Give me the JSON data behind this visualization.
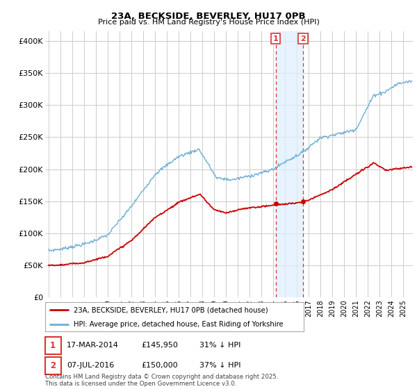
{
  "title": "23A, BECKSIDE, BEVERLEY, HU17 0PB",
  "subtitle": "Price paid vs. HM Land Registry's House Price Index (HPI)",
  "footer": "Contains HM Land Registry data © Crown copyright and database right 2025.\nThis data is licensed under the Open Government Licence v3.0.",
  "legend_line1": "23A, BECKSIDE, BEVERLEY, HU17 0PB (detached house)",
  "legend_line2": "HPI: Average price, detached house, East Riding of Yorkshire",
  "sale1_label": "1",
  "sale1_date": "17-MAR-2014",
  "sale1_price": "£145,950",
  "sale1_hpi": "31% ↓ HPI",
  "sale2_label": "2",
  "sale2_date": "07-JUL-2016",
  "sale2_price": "£150,000",
  "sale2_hpi": "37% ↓ HPI",
  "hpi_color": "#6aaed6",
  "price_color": "#cc0000",
  "sale_marker_color": "#cc0000",
  "vline_color": "#dd3333",
  "shade_color": "#ddeeff",
  "ylabel_ticks": [
    "£0",
    "£50K",
    "£100K",
    "£150K",
    "£200K",
    "£250K",
    "£300K",
    "£350K",
    "£400K"
  ],
  "ytick_values": [
    0,
    50000,
    100000,
    150000,
    200000,
    250000,
    300000,
    350000,
    400000
  ],
  "ylim": [
    0,
    415000
  ],
  "xlim_start": 1994.7,
  "xlim_end": 2025.8,
  "sale1_x": 2014.21,
  "sale1_y": 145950,
  "sale2_x": 2016.52,
  "sale2_y": 150000,
  "background_color": "#ffffff",
  "grid_color": "#cccccc"
}
